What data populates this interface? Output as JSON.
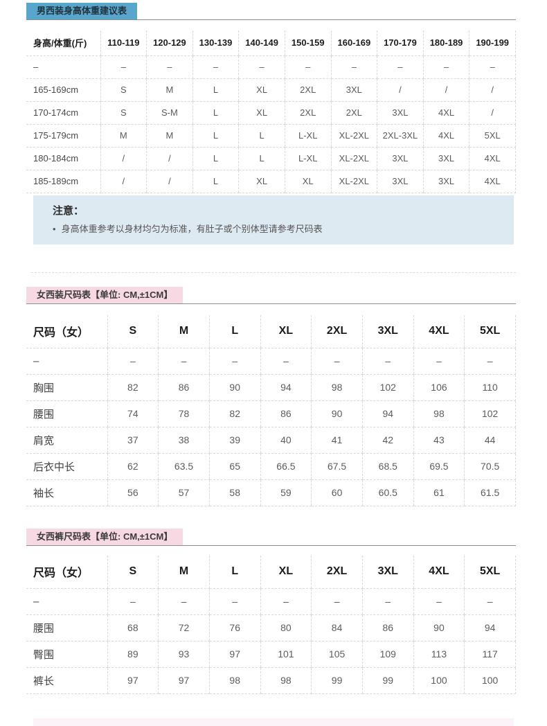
{
  "colors": {
    "men_badge_bg": "#58a6cb",
    "women_badge_bg": "#f7d9e4",
    "note_box_bg": "#deeaf2",
    "footer_strip_bg": "#fbf3f7"
  },
  "men_section": {
    "badge_label": "男西装身高体重建议表",
    "table": {
      "columns": [
        "身高/体重(斤)",
        "110-119",
        "120-129",
        "130-139",
        "140-149",
        "150-159",
        "160-169",
        "170-179",
        "180-189",
        "190-199"
      ],
      "rows": [
        [
          "–",
          "–",
          "–",
          "–",
          "–",
          "–",
          "–",
          "–",
          "–",
          "–"
        ],
        [
          "165-169cm",
          "S",
          "M",
          "L",
          "XL",
          "2XL",
          "3XL",
          "/",
          "/",
          "/"
        ],
        [
          "170-174cm",
          "S",
          "S-M",
          "L",
          "XL",
          "2XL",
          "2XL",
          "3XL",
          "4XL",
          "/"
        ],
        [
          "175-179cm",
          "M",
          "M",
          "L",
          "L",
          "L-XL",
          "XL-2XL",
          "2XL-3XL",
          "4XL",
          "5XL"
        ],
        [
          "180-184cm",
          "/",
          "/",
          "L",
          "L",
          "L-XL",
          "XL-2XL",
          "3XL",
          "3XL",
          "4XL"
        ],
        [
          "185-189cm",
          "/",
          "/",
          "L",
          "XL",
          "XL",
          "XL-2XL",
          "3XL",
          "3XL",
          "4XL"
        ]
      ]
    },
    "note": {
      "title": "注意：",
      "bullet_marker": "•",
      "bullet_text": "身高体重参考以身材均匀为标准，有肚子或个别体型请参考尺码表"
    }
  },
  "women_suit_section": {
    "badge_label": "女西装尺码表【单位: CM,±1CM】",
    "table": {
      "columns": [
        "尺码（女）",
        "S",
        "M",
        "L",
        "XL",
        "2XL",
        "3XL",
        "4XL",
        "5XL"
      ],
      "rows": [
        [
          "–",
          "–",
          "–",
          "–",
          "–",
          "–",
          "–",
          "–",
          "–"
        ],
        [
          "胸围",
          "82",
          "86",
          "90",
          "94",
          "98",
          "102",
          "106",
          "110"
        ],
        [
          "腰围",
          "74",
          "78",
          "82",
          "86",
          "90",
          "94",
          "98",
          "102"
        ],
        [
          "肩宽",
          "37",
          "38",
          "39",
          "40",
          "41",
          "42",
          "43",
          "44"
        ],
        [
          "后衣中长",
          "62",
          "63.5",
          "65",
          "66.5",
          "67.5",
          "68.5",
          "69.5",
          "70.5"
        ],
        [
          "袖长",
          "56",
          "57",
          "58",
          "59",
          "60",
          "60.5",
          "61",
          "61.5"
        ]
      ]
    }
  },
  "women_pants_section": {
    "badge_label": "女西裤尺码表【单位: CM,±1CM】",
    "table": {
      "columns": [
        "尺码（女）",
        "S",
        "M",
        "L",
        "XL",
        "2XL",
        "3XL",
        "4XL",
        "5XL"
      ],
      "rows": [
        [
          "–",
          "–",
          "–",
          "–",
          "–",
          "–",
          "–",
          "–",
          "–"
        ],
        [
          "腰围",
          "68",
          "72",
          "76",
          "80",
          "84",
          "86",
          "90",
          "94"
        ],
        [
          "臀围",
          "89",
          "93",
          "97",
          "101",
          "105",
          "109",
          "113",
          "117"
        ],
        [
          "裤长",
          "97",
          "97",
          "98",
          "98",
          "99",
          "99",
          "100",
          "100"
        ]
      ]
    }
  }
}
